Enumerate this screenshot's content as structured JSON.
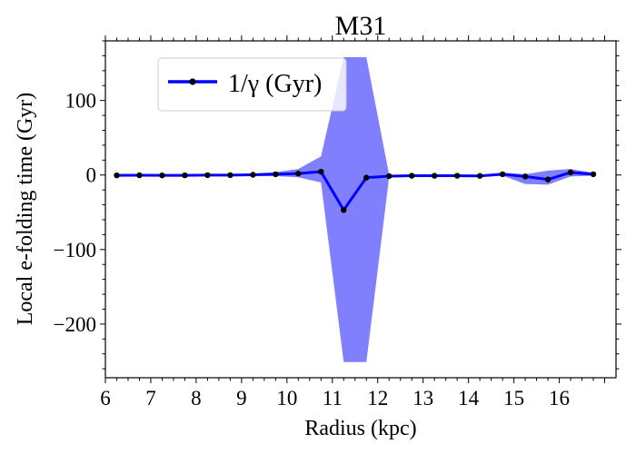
{
  "chart_data": {
    "type": "line",
    "title": "M31",
    "xlabel": "Radius (kpc)",
    "ylabel": "Local e-folding time (Gyr)",
    "xlim": [
      6.0,
      17.25
    ],
    "ylim": [
      -272,
      180
    ],
    "x_ticks": [
      6,
      7,
      8,
      9,
      10,
      11,
      12,
      13,
      14,
      15,
      16
    ],
    "x_tick_labels": [
      "6",
      "7",
      "8",
      "9",
      "10",
      "11",
      "12",
      "13",
      "14",
      "15",
      "16"
    ],
    "y_ticks": [
      100,
      0,
      -100,
      -200
    ],
    "y_tick_labels": [
      "100",
      "0",
      "−100",
      "−200"
    ],
    "legend": {
      "label": "1/γ (Gyr)",
      "position": "upper-left"
    },
    "colors": {
      "line": "#0000ff",
      "band": "#8080ff",
      "marker": "#000000"
    },
    "series": [
      {
        "name": "1/γ (Gyr)",
        "x": [
          6.25,
          6.75,
          7.25,
          7.75,
          8.25,
          8.75,
          9.25,
          9.75,
          10.25,
          10.75,
          11.25,
          11.75,
          12.25,
          12.75,
          13.25,
          13.75,
          14.25,
          14.75,
          15.25,
          15.75,
          16.25,
          16.75
        ],
        "y": [
          -0.5,
          -0.3,
          -0.5,
          -0.4,
          -0.2,
          -0.2,
          0.3,
          1.0,
          2.0,
          4.5,
          -47.0,
          -3.5,
          -1.5,
          -1.0,
          -1.0,
          -1.0,
          -1.2,
          1.0,
          -2.0,
          -6.0,
          3.5,
          1.0
        ],
        "band_upper": [
          1.0,
          1.0,
          1.0,
          1.0,
          1.0,
          1.0,
          2.0,
          4.0,
          8.0,
          25.0,
          158.0,
          158.0,
          0.5,
          0.0,
          0.0,
          0.0,
          0.0,
          3.0,
          1.0,
          6.0,
          8.0,
          3.0
        ],
        "band_lower": [
          -1.5,
          -1.5,
          -1.5,
          -1.5,
          -1.5,
          -1.5,
          -1.0,
          -1.5,
          -3.0,
          -10.0,
          -251.0,
          -251.0,
          -3.5,
          -2.5,
          -2.5,
          -2.5,
          -2.5,
          -1.0,
          -12.0,
          -13.0,
          -2.0,
          -1.0
        ]
      }
    ]
  }
}
